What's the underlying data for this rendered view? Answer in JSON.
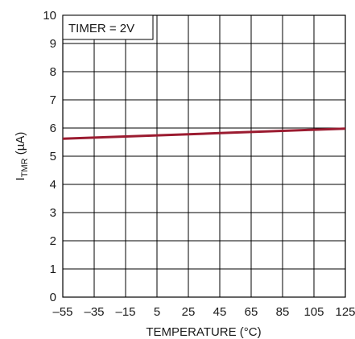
{
  "chart_data": {
    "type": "line",
    "xlabel": "TEMPERATURE (°C)",
    "ylabel_main": "I",
    "ylabel_sub": "TMR",
    "ylabel_unit": " (µA)",
    "annotation": "TIMER = 2V",
    "xlim": [
      -55,
      125
    ],
    "ylim": [
      0,
      10
    ],
    "xticks": [
      -55,
      -35,
      -15,
      5,
      25,
      45,
      65,
      85,
      105,
      125
    ],
    "xtick_labels": [
      "–55",
      "–35",
      "–15",
      "5",
      "25",
      "45",
      "65",
      "85",
      "105",
      "125"
    ],
    "yticks": [
      0,
      1,
      2,
      3,
      4,
      5,
      6,
      7,
      8,
      9,
      10
    ],
    "grid": true,
    "series": [
      {
        "x": [
          -55,
          -35,
          -15,
          5,
          25,
          45,
          65,
          85,
          105,
          125
        ],
        "y": [
          5.62,
          5.66,
          5.7,
          5.74,
          5.78,
          5.82,
          5.86,
          5.9,
          5.94,
          5.98
        ]
      }
    ],
    "colors": {
      "line": "#9b1b30",
      "grid": "#000000",
      "text": "#1a1a1a"
    }
  }
}
